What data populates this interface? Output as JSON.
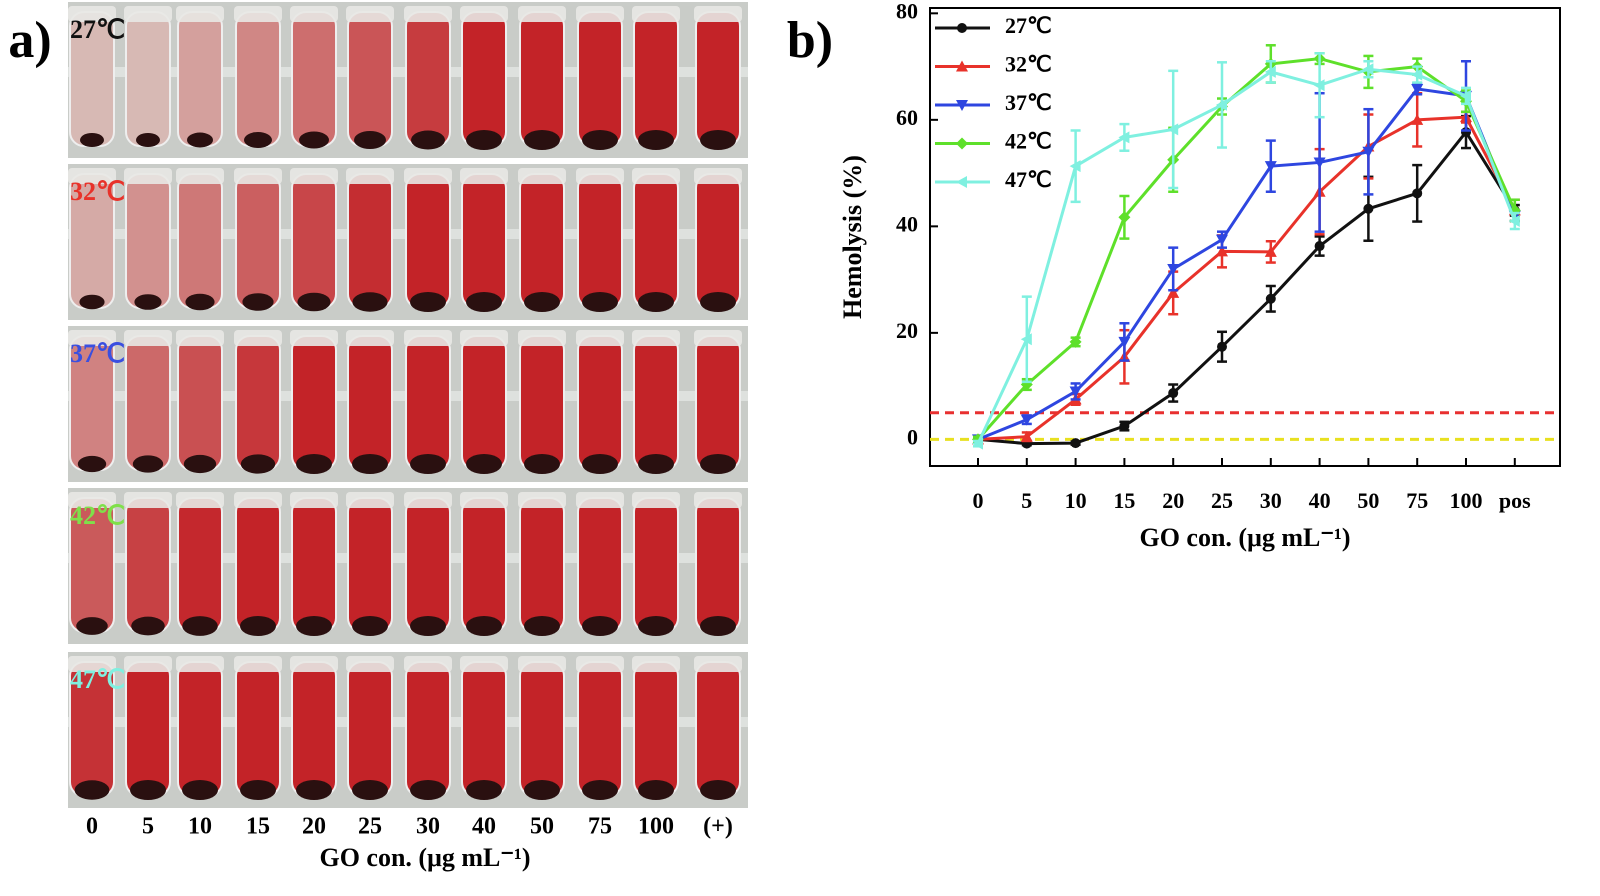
{
  "photo_panel": {
    "label": "a)",
    "rows": [
      "27℃",
      "32℃",
      "37℃",
      "42℃",
      "47℃"
    ],
    "row_colors": [
      "#111111",
      "#e8322a",
      "#3a4fe0",
      "#7fe04a",
      "#80f0e0"
    ],
    "columns": [
      "0",
      "5",
      "10",
      "15",
      "20",
      "25",
      "30",
      "40",
      "50",
      "75",
      "100",
      "(+)"
    ],
    "x_label": "GO con. (μg mL⁻¹)"
  },
  "chart_data": {
    "type": "line",
    "panel_label": "b)",
    "x_label": "GO con. (μg mL⁻¹)",
    "y_label": "Hemolysis (%)",
    "categories": [
      "0",
      "5",
      "10",
      "15",
      "20",
      "25",
      "30",
      "40",
      "50",
      "75",
      "100",
      "pos"
    ],
    "ylim": [
      -5,
      81
    ],
    "yticks": [
      0,
      20,
      40,
      60,
      80
    ],
    "legend": "upper left",
    "reference_lines": [
      {
        "value": 5,
        "color": "#e83030"
      },
      {
        "value": 0,
        "color": "#e8e020"
      }
    ],
    "series": [
      {
        "name": "27℃",
        "color": "#111111",
        "marker": "circle",
        "values": [
          0,
          -0.8,
          -0.7,
          2.5,
          8.7,
          17.4,
          26.4,
          36.3,
          43.3,
          46.2,
          57.7,
          43
        ],
        "errors": [
          0.5,
          0.3,
          0.3,
          0.8,
          1.6,
          2.8,
          2.4,
          1.8,
          6,
          5.3,
          3,
          1
        ]
      },
      {
        "name": "32℃",
        "color": "#e8322a",
        "marker": "triangle-up",
        "values": [
          0,
          0.5,
          7.5,
          15.5,
          27.5,
          35.3,
          35.2,
          46.5,
          55,
          60,
          60.5,
          43
        ],
        "errors": [
          0.5,
          0.8,
          1,
          5,
          4,
          3,
          2,
          8,
          6,
          5,
          1,
          2
        ]
      },
      {
        "name": "37℃",
        "color": "#2e46e0",
        "marker": "triangle-down",
        "values": [
          0,
          3.7,
          9,
          18.3,
          32,
          37.5,
          51.3,
          52,
          54,
          65.8,
          64.5,
          42
        ],
        "errors": [
          0.5,
          0.8,
          1.5,
          3.5,
          4,
          1.5,
          4.8,
          13,
          8,
          1,
          6.5,
          1
        ]
      },
      {
        "name": "42℃",
        "color": "#5ee02a",
        "marker": "diamond",
        "values": [
          0,
          10.3,
          18.3,
          41.7,
          52.5,
          62.5,
          70.5,
          71.5,
          69,
          70,
          63.5,
          43
        ],
        "errors": [
          0.5,
          1,
          0.8,
          4,
          6,
          1.5,
          3.5,
          1,
          3,
          1.5,
          2,
          2
        ]
      },
      {
        "name": "47℃",
        "color": "#7ff0e0",
        "marker": "triangle-left",
        "values": [
          -0.8,
          18.8,
          51.3,
          56.7,
          58.2,
          62.8,
          69,
          66.5,
          69.5,
          68.5,
          64.5,
          41
        ],
        "errors": [
          0.5,
          8,
          6.7,
          2.5,
          11,
          8,
          2,
          6,
          1.5,
          1.5,
          1.5,
          1.5
        ]
      }
    ]
  }
}
